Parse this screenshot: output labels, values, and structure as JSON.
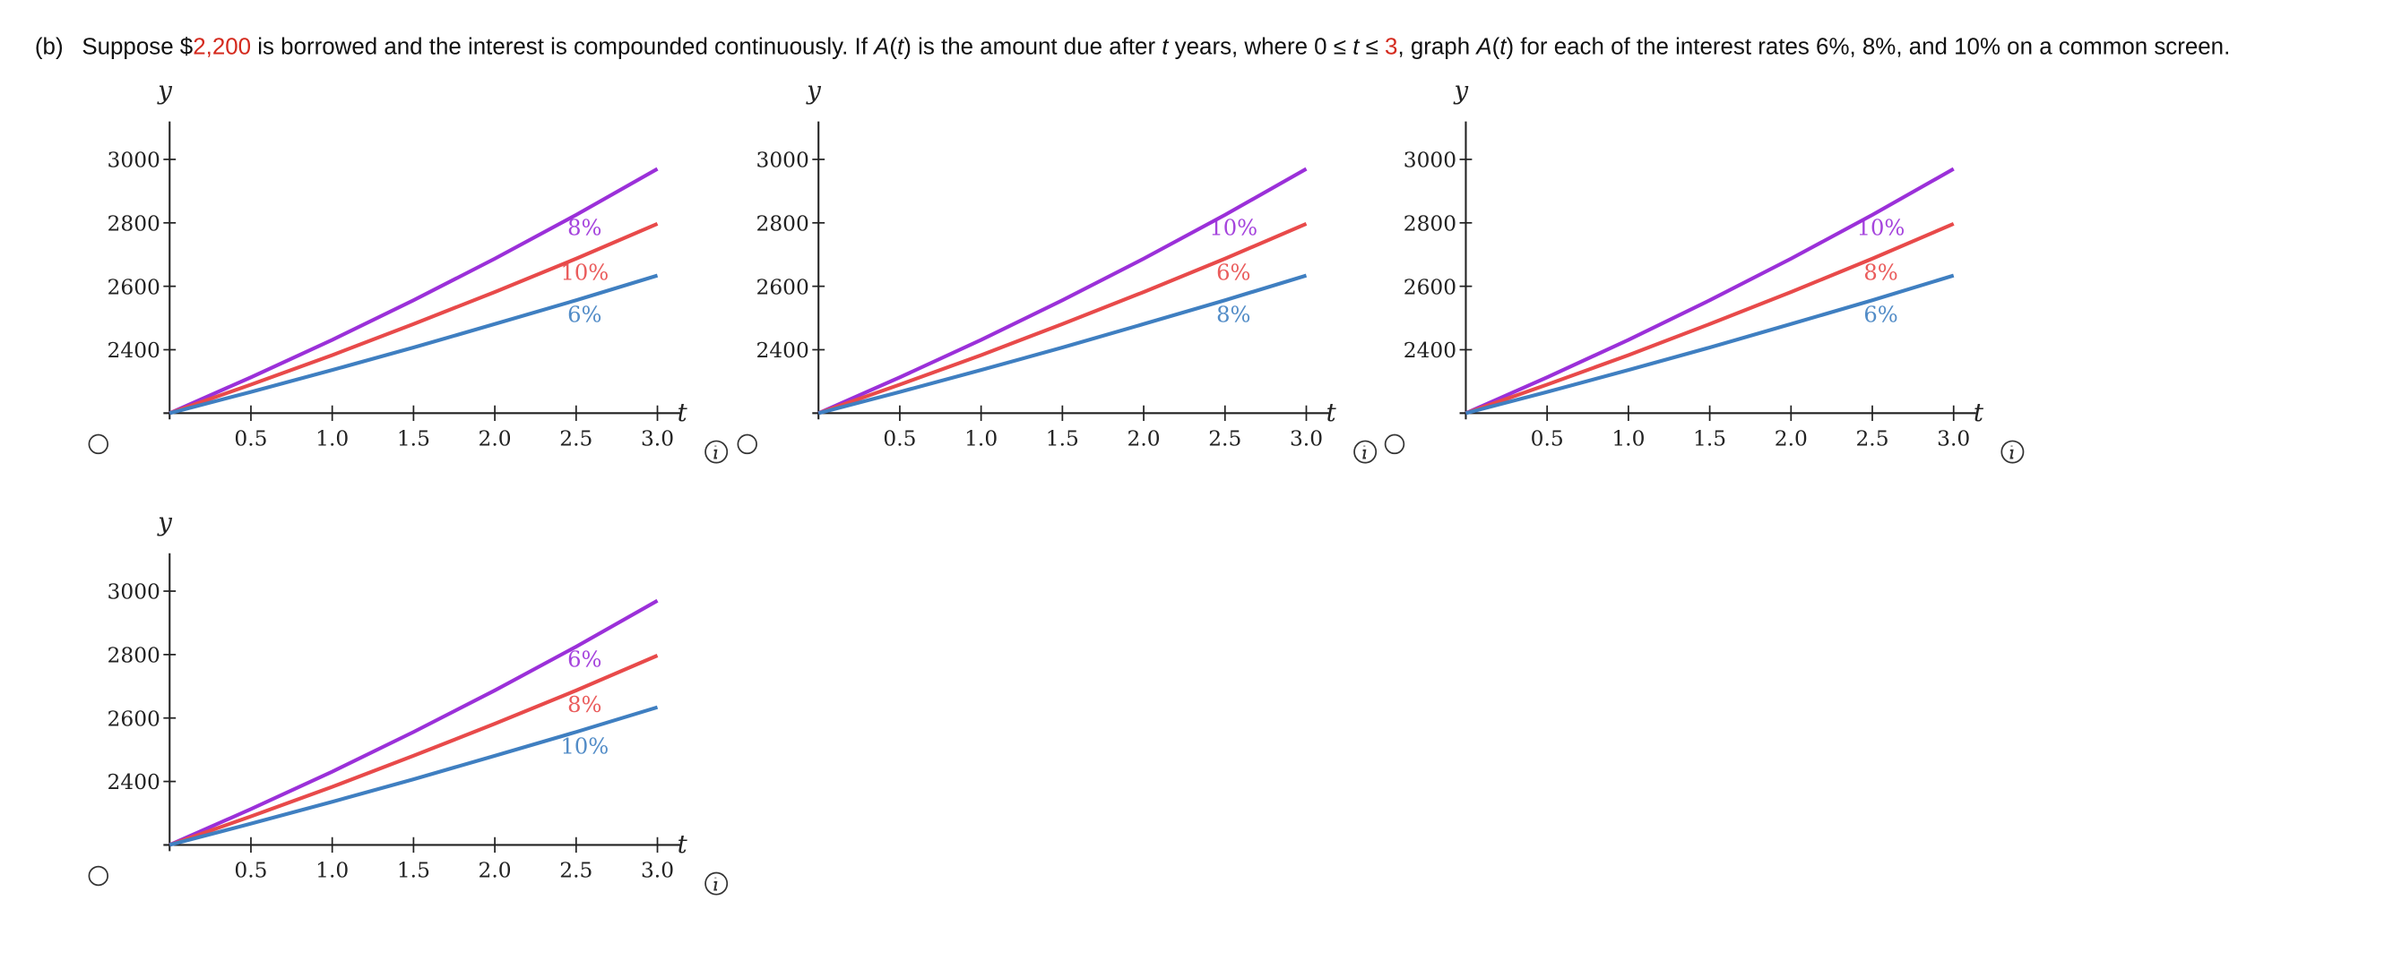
{
  "question": [
    "(b)",
    "Suppose $",
    "2,200",
    " is borrowed and the interest is compounded continuously. If ",
    "A",
    "(",
    "t",
    ") is the amount due after ",
    "t",
    " years, where 0 ≤ ",
    "t",
    " ≤ ",
    "3",
    ", graph ",
    "A",
    "(",
    "t",
    ") for each of the interest rates 6%, 8%, and 10% on a common screen."
  ],
  "chart_data": [
    {
      "type": "line",
      "x_label": "t",
      "y_label": "y",
      "x": [
        0,
        0.5,
        1,
        1.5,
        2,
        2.5,
        3
      ],
      "series": [
        {
          "name": "8%",
          "color": "#9b30d9",
          "values": [
            2200,
            2313,
            2431,
            2556,
            2687,
            2825,
            2970
          ]
        },
        {
          "name": "10%",
          "color": "#e84a4a",
          "values": [
            2200,
            2290,
            2383,
            2481,
            2582,
            2687,
            2797
          ]
        },
        {
          "name": "6%",
          "color": "#3f7fc1",
          "values": [
            2200,
            2267,
            2336,
            2407,
            2481,
            2556,
            2634
          ]
        }
      ],
      "xlim": [
        0,
        3.1
      ],
      "ylim": [
        2200,
        3100
      ],
      "xticks": [
        0.5,
        {
          "value": 1,
          "label": "1.0"
        },
        1.5,
        {
          "value": 2,
          "label": "2.0"
        },
        2.5,
        {
          "value": 3,
          "label": "3.0"
        }
      ],
      "yticks": [
        2400,
        2600,
        2800,
        3000
      ]
    },
    {
      "type": "line",
      "x_label": "t",
      "y_label": "y",
      "x": [
        0,
        0.5,
        1,
        1.5,
        2,
        2.5,
        3
      ],
      "series": [
        {
          "name": "10%",
          "color": "#9b30d9",
          "values": [
            2200,
            2313,
            2431,
            2556,
            2687,
            2825,
            2970
          ]
        },
        {
          "name": "6%",
          "color": "#e84a4a",
          "values": [
            2200,
            2290,
            2383,
            2481,
            2582,
            2687,
            2797
          ]
        },
        {
          "name": "8%",
          "color": "#3f7fc1",
          "values": [
            2200,
            2267,
            2336,
            2407,
            2481,
            2556,
            2634
          ]
        }
      ],
      "xlim": [
        0,
        3.1
      ],
      "ylim": [
        2200,
        3100
      ],
      "xticks": [
        0.5,
        {
          "value": 1,
          "label": "1.0"
        },
        1.5,
        {
          "value": 2,
          "label": "2.0"
        },
        2.5,
        {
          "value": 3,
          "label": "3.0"
        }
      ],
      "yticks": [
        2400,
        2600,
        2800,
        3000
      ]
    },
    {
      "type": "line",
      "x_label": "t",
      "y_label": "y",
      "x": [
        0,
        0.5,
        1,
        1.5,
        2,
        2.5,
        3
      ],
      "series": [
        {
          "name": "10%",
          "color": "#9b30d9",
          "values": [
            2200,
            2313,
            2431,
            2556,
            2687,
            2825,
            2970
          ]
        },
        {
          "name": "8%",
          "color": "#e84a4a",
          "values": [
            2200,
            2290,
            2383,
            2481,
            2582,
            2687,
            2797
          ]
        },
        {
          "name": "6%",
          "color": "#3f7fc1",
          "values": [
            2200,
            2267,
            2336,
            2407,
            2481,
            2556,
            2634
          ]
        }
      ],
      "xlim": [
        0,
        3.1
      ],
      "ylim": [
        2200,
        3100
      ],
      "xticks": [
        0.5,
        {
          "value": 1,
          "label": "1.0"
        },
        1.5,
        {
          "value": 2,
          "label": "2.0"
        },
        2.5,
        {
          "value": 3,
          "label": "3.0"
        }
      ],
      "yticks": [
        2400,
        2600,
        2800,
        3000
      ]
    },
    {
      "type": "line",
      "x_label": "t",
      "y_label": "y",
      "x": [
        0,
        0.5,
        1,
        1.5,
        2,
        2.5,
        3
      ],
      "series": [
        {
          "name": "6%",
          "color": "#9b30d9",
          "values": [
            2200,
            2313,
            2431,
            2556,
            2687,
            2825,
            2970
          ]
        },
        {
          "name": "8%",
          "color": "#e84a4a",
          "values": [
            2200,
            2290,
            2383,
            2481,
            2582,
            2687,
            2797
          ]
        },
        {
          "name": "10%",
          "color": "#3f7fc1",
          "values": [
            2200,
            2267,
            2336,
            2407,
            2481,
            2556,
            2634
          ]
        }
      ],
      "xlim": [
        0,
        3.1
      ],
      "ylim": [
        2200,
        3100
      ],
      "xticks": [
        0.5,
        {
          "value": 1,
          "label": "1.0"
        },
        1.5,
        {
          "value": 2,
          "label": "2.0"
        },
        2.5,
        {
          "value": 3,
          "label": "3.0"
        }
      ],
      "yticks": [
        2400,
        2600,
        2800,
        3000
      ]
    }
  ]
}
